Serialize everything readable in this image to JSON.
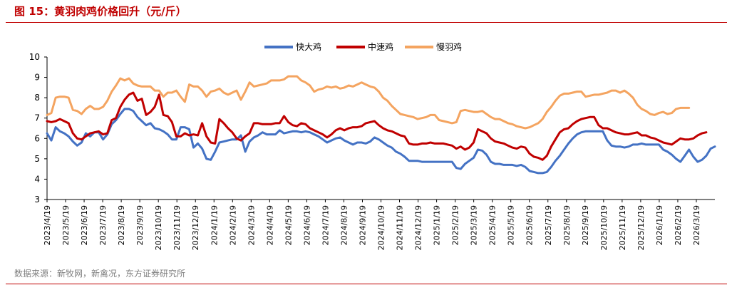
{
  "figure": {
    "title": "图 15：黄羽肉鸡价格回升（元/斤）",
    "source": "数据来源：新牧网，新禽况，东方证券研究所"
  },
  "colors": {
    "accent": "#c00000",
    "fast": "#4472c4",
    "medium": "#c00000",
    "slow": "#f4a460",
    "source_text": "#7f7f7f"
  },
  "chart_data": {
    "type": "line",
    "title": "",
    "xlabel": "",
    "ylabel": "",
    "ylim": [
      3,
      10
    ],
    "yticks": [
      3,
      4,
      5,
      6,
      7,
      8,
      9,
      10
    ],
    "grid": false,
    "legend_position": "top-center",
    "x_start": "2023/4/19",
    "x_interval": "weekly",
    "x_tick_labels": [
      "2023/4/19",
      "2023/5/19",
      "2023/6/19",
      "2023/7/19",
      "2023/8/19",
      "2023/9/19",
      "2023/10/19",
      "2023/11/19",
      "2023/12/19",
      "2024/1/19",
      "2024/2/19",
      "2024/3/19",
      "2024/4/19",
      "2024/5/19",
      "2024/6/19",
      "2024/7/19",
      "2024/8/19",
      "2024/9/19",
      "2024/10/19",
      "2024/11/19",
      "2024/12/19",
      "2025/1/19",
      "2025/2/19",
      "2025/3/19",
      "2025/4/19",
      "2025/5/19",
      "2025/6/19",
      "2025/7/19",
      "2025/8/19",
      "2025/9/19",
      "2025/10/19",
      "2025/11/19",
      "2025/12/19",
      "2026/1/19",
      "2026/2/19",
      "2026/3/19"
    ],
    "series": [
      {
        "name": "快大鸡",
        "color": "#4472c4",
        "values": [
          6.25,
          5.9,
          6.55,
          6.35,
          6.25,
          6.1,
          5.85,
          5.65,
          5.8,
          6.25,
          6.1,
          6.3,
          6.3,
          5.95,
          6.2,
          6.7,
          6.9,
          7.2,
          7.45,
          7.45,
          7.35,
          7.05,
          6.85,
          6.65,
          6.75,
          6.5,
          6.45,
          6.35,
          6.2,
          5.95,
          5.95,
          6.55,
          6.55,
          6.45,
          5.55,
          5.75,
          5.5,
          5.0,
          4.95,
          5.35,
          5.8,
          5.85,
          5.9,
          5.95,
          5.95,
          6.15,
          5.35,
          5.85,
          6.05,
          6.15,
          6.3,
          6.2,
          6.2,
          6.2,
          6.4,
          6.25,
          6.3,
          6.35,
          6.35,
          6.3,
          6.35,
          6.3,
          6.2,
          6.1,
          5.95,
          5.8,
          5.9,
          6.0,
          6.05,
          5.9,
          5.8,
          5.7,
          5.8,
          5.8,
          5.75,
          5.85,
          6.05,
          5.95,
          5.8,
          5.65,
          5.55,
          5.35,
          5.25,
          5.1,
          4.9,
          4.9,
          4.9,
          4.85,
          4.85,
          4.85,
          4.85,
          4.85,
          4.85,
          4.85,
          4.85,
          4.55,
          4.5,
          4.75,
          4.9,
          5.05,
          5.45,
          5.4,
          5.2,
          4.85,
          4.75,
          4.75,
          4.7,
          4.7,
          4.7,
          4.65,
          4.7,
          4.6,
          4.4,
          4.35,
          4.3,
          4.3,
          4.35,
          4.6,
          4.9,
          5.15,
          5.45,
          5.75,
          6.0,
          6.2,
          6.3,
          6.35,
          6.35,
          6.35,
          6.35,
          6.35,
          5.9,
          5.65,
          5.6,
          5.6,
          5.55,
          5.6,
          5.7,
          5.7,
          5.75,
          5.7,
          5.7,
          5.7,
          5.7,
          5.45,
          5.35,
          5.2,
          5.0,
          4.85,
          5.15,
          5.45,
          5.1,
          4.85,
          4.95,
          5.15,
          5.5,
          5.6
        ]
      },
      {
        "name": "中速鸡",
        "color": "#c00000",
        "values": [
          6.85,
          6.8,
          6.85,
          6.95,
          6.85,
          6.75,
          6.25,
          6.0,
          5.95,
          6.1,
          6.25,
          6.3,
          6.35,
          6.2,
          6.25,
          6.9,
          7.0,
          7.55,
          7.9,
          8.15,
          8.25,
          7.85,
          7.95,
          7.15,
          7.3,
          7.55,
          8.15,
          7.15,
          7.1,
          6.8,
          6.1,
          6.1,
          6.25,
          6.15,
          6.2,
          6.15,
          6.75,
          6.1,
          5.8,
          5.75,
          6.95,
          6.75,
          6.5,
          6.3,
          6.0,
          5.9,
          6.1,
          6.25,
          6.75,
          6.75,
          6.7,
          6.7,
          6.7,
          6.75,
          6.75,
          7.1,
          6.8,
          6.65,
          6.6,
          6.75,
          6.7,
          6.5,
          6.4,
          6.3,
          6.2,
          6.05,
          6.2,
          6.4,
          6.5,
          6.4,
          6.5,
          6.55,
          6.55,
          6.6,
          6.75,
          6.8,
          6.85,
          6.65,
          6.5,
          6.4,
          6.35,
          6.25,
          6.15,
          6.1,
          5.75,
          5.7,
          5.7,
          5.75,
          5.75,
          5.8,
          5.75,
          5.75,
          5.75,
          5.7,
          5.65,
          5.5,
          5.6,
          5.45,
          5.55,
          5.8,
          6.45,
          6.35,
          6.25,
          6.0,
          5.85,
          5.8,
          5.75,
          5.65,
          5.55,
          5.5,
          5.6,
          5.55,
          5.25,
          5.1,
          5.05,
          4.95,
          5.15,
          5.6,
          5.95,
          6.3,
          6.45,
          6.5,
          6.7,
          6.85,
          6.95,
          7.0,
          7.05,
          7.05,
          6.65,
          6.5,
          6.5,
          6.4,
          6.3,
          6.25,
          6.2,
          6.2,
          6.25,
          6.3,
          6.15,
          6.15,
          6.05,
          6.0,
          5.9,
          5.8,
          5.75,
          5.7,
          5.85,
          6.0,
          5.95,
          5.95,
          6.0,
          6.15,
          6.25,
          6.3
        ]
      },
      {
        "name": "慢羽鸡",
        "color": "#f4a460",
        "values": [
          7.15,
          7.25,
          8.0,
          8.05,
          8.05,
          8.0,
          7.4,
          7.35,
          7.2,
          7.45,
          7.6,
          7.45,
          7.45,
          7.55,
          7.85,
          8.3,
          8.6,
          8.95,
          8.85,
          8.95,
          8.7,
          8.6,
          8.55,
          8.55,
          8.55,
          8.35,
          8.35,
          8.05,
          8.25,
          8.25,
          8.35,
          8.05,
          7.8,
          8.65,
          8.55,
          8.55,
          8.35,
          8.05,
          8.3,
          8.35,
          8.45,
          8.25,
          8.15,
          8.25,
          8.35,
          7.9,
          8.3,
          8.75,
          8.55,
          8.6,
          8.65,
          8.7,
          8.85,
          8.85,
          8.85,
          8.9,
          9.05,
          9.05,
          9.05,
          8.85,
          8.75,
          8.6,
          8.3,
          8.4,
          8.45,
          8.55,
          8.5,
          8.55,
          8.45,
          8.5,
          8.6,
          8.55,
          8.65,
          8.75,
          8.65,
          8.55,
          8.5,
          8.3,
          8.0,
          7.85,
          7.6,
          7.4,
          7.2,
          7.15,
          7.1,
          7.05,
          6.95,
          7.0,
          7.05,
          7.15,
          7.15,
          6.9,
          6.85,
          6.8,
          6.75,
          6.8,
          7.35,
          7.4,
          7.35,
          7.3,
          7.3,
          7.35,
          7.2,
          7.05,
          6.95,
          6.95,
          6.85,
          6.75,
          6.7,
          6.6,
          6.55,
          6.5,
          6.55,
          6.65,
          6.75,
          6.95,
          7.3,
          7.55,
          7.85,
          8.1,
          8.2,
          8.2,
          8.25,
          8.3,
          8.3,
          8.05,
          8.1,
          8.15,
          8.15,
          8.2,
          8.25,
          8.35,
          8.35,
          8.25,
          8.35,
          8.2,
          8.0,
          7.65,
          7.45,
          7.35,
          7.2,
          7.15,
          7.25,
          7.3,
          7.2,
          7.25,
          7.45,
          7.5,
          7.5,
          7.5
        ]
      }
    ]
  }
}
